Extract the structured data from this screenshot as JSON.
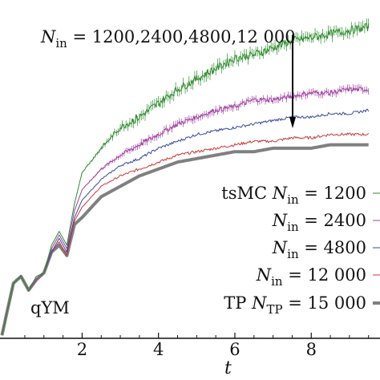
{
  "chart_data": {
    "type": "line",
    "xlabel": "t",
    "ylabel": "",
    "xlim": [
      -0.15,
      9.8
    ],
    "ylim": [
      0,
      1
    ],
    "x_ticks": [
      2,
      4,
      6,
      8
    ],
    "x_tick_labels": [
      "2",
      "4",
      "6",
      "8"
    ],
    "legend_position": "bottom-right",
    "panel_label": "qYM",
    "annotation": {
      "prefix": "N",
      "subscript": "in",
      "text": " = 1200,2400,4800,12 000",
      "arrow_at_x": 7.0
    },
    "series": [
      {
        "name": "tsMC N_in = 1200",
        "legend_parts": [
          "tsMC ",
          "N",
          "in",
          " = 1200"
        ],
        "color": "#2e8b2e",
        "width": 1.0,
        "error_bars": true,
        "x": [
          -0.1,
          0.2,
          0.4,
          0.6,
          0.8,
          1.0,
          1.2,
          1.4,
          1.6,
          1.8,
          2.0,
          2.5,
          3.0,
          3.5,
          4.0,
          4.5,
          5.0,
          5.5,
          6.0,
          6.5,
          7.0,
          7.5,
          8.0,
          8.5,
          9.0,
          9.5
        ],
        "y": [
          0.12,
          0.27,
          0.29,
          0.25,
          0.29,
          0.3,
          0.38,
          0.42,
          0.38,
          0.5,
          0.59,
          0.66,
          0.72,
          0.75,
          0.79,
          0.83,
          0.86,
          0.89,
          0.92,
          0.93,
          0.95,
          0.97,
          0.98,
          0.99,
          1.0,
          1.01
        ]
      },
      {
        "name": "N_in = 2400",
        "legend_parts": [
          "",
          "N",
          "in",
          " = 2400"
        ],
        "color": "#a040a0",
        "width": 1.0,
        "error_bars": true,
        "x": [
          -0.1,
          0.2,
          0.4,
          0.6,
          0.8,
          1.0,
          1.2,
          1.4,
          1.6,
          1.8,
          2.0,
          2.5,
          3.0,
          3.5,
          4.0,
          4.5,
          5.0,
          5.5,
          6.0,
          6.5,
          7.0,
          7.5,
          8.0,
          8.5,
          9.0,
          9.5
        ],
        "y": [
          0.12,
          0.27,
          0.29,
          0.25,
          0.28,
          0.3,
          0.37,
          0.41,
          0.37,
          0.48,
          0.54,
          0.6,
          0.64,
          0.67,
          0.7,
          0.73,
          0.75,
          0.77,
          0.78,
          0.8,
          0.8,
          0.81,
          0.82,
          0.82,
          0.83,
          0.83
        ]
      },
      {
        "name": "N_in = 4800",
        "legend_parts": [
          "",
          "N",
          "in",
          " = 4800"
        ],
        "color": "#3a4a9a",
        "width": 1.0,
        "error_bars": false,
        "x": [
          -0.1,
          0.2,
          0.4,
          0.6,
          0.8,
          1.0,
          1.2,
          1.4,
          1.6,
          1.8,
          2.0,
          2.5,
          3.0,
          3.5,
          4.0,
          4.5,
          5.0,
          5.5,
          6.0,
          6.5,
          7.0,
          7.5,
          8.0,
          8.5,
          9.0,
          9.5
        ],
        "y": [
          0.12,
          0.27,
          0.29,
          0.25,
          0.28,
          0.3,
          0.36,
          0.4,
          0.36,
          0.46,
          0.51,
          0.57,
          0.61,
          0.63,
          0.66,
          0.68,
          0.7,
          0.71,
          0.72,
          0.73,
          0.74,
          0.75,
          0.75,
          0.76,
          0.76,
          0.77
        ]
      },
      {
        "name": "N_in = 12 000",
        "legend_parts": [
          "",
          "N",
          "in",
          " = 12 000"
        ],
        "color": "#c83a3a",
        "width": 1.0,
        "error_bars": false,
        "x": [
          -0.1,
          0.2,
          0.4,
          0.6,
          0.8,
          1.0,
          1.2,
          1.4,
          1.6,
          1.8,
          2.0,
          2.5,
          3.0,
          3.5,
          4.0,
          4.5,
          5.0,
          5.5,
          6.0,
          6.5,
          7.0,
          7.5,
          8.0,
          8.5,
          9.0,
          9.5
        ],
        "y": [
          0.12,
          0.27,
          0.29,
          0.25,
          0.28,
          0.3,
          0.36,
          0.39,
          0.35,
          0.45,
          0.49,
          0.55,
          0.58,
          0.6,
          0.62,
          0.64,
          0.65,
          0.66,
          0.67,
          0.68,
          0.68,
          0.69,
          0.69,
          0.7,
          0.7,
          0.7
        ]
      },
      {
        "name": "TP N_TP = 15 000",
        "legend_parts": [
          "TP ",
          "N",
          "TP",
          " = 15 000"
        ],
        "color": "#808080",
        "width": 4.0,
        "error_bars": false,
        "x": [
          -0.1,
          0.2,
          0.4,
          0.6,
          0.8,
          1.0,
          1.2,
          1.4,
          1.6,
          1.8,
          2.0,
          2.5,
          3.0,
          3.5,
          4.0,
          4.5,
          5.0,
          5.5,
          6.0,
          6.5,
          7.0,
          7.5,
          8.0,
          8.5,
          9.0,
          9.5
        ],
        "y": [
          0.12,
          0.27,
          0.29,
          0.25,
          0.28,
          0.3,
          0.36,
          0.38,
          0.35,
          0.44,
          0.46,
          0.52,
          0.55,
          0.58,
          0.6,
          0.62,
          0.63,
          0.64,
          0.65,
          0.65,
          0.66,
          0.66,
          0.66,
          0.67,
          0.67,
          0.67
        ]
      }
    ]
  }
}
